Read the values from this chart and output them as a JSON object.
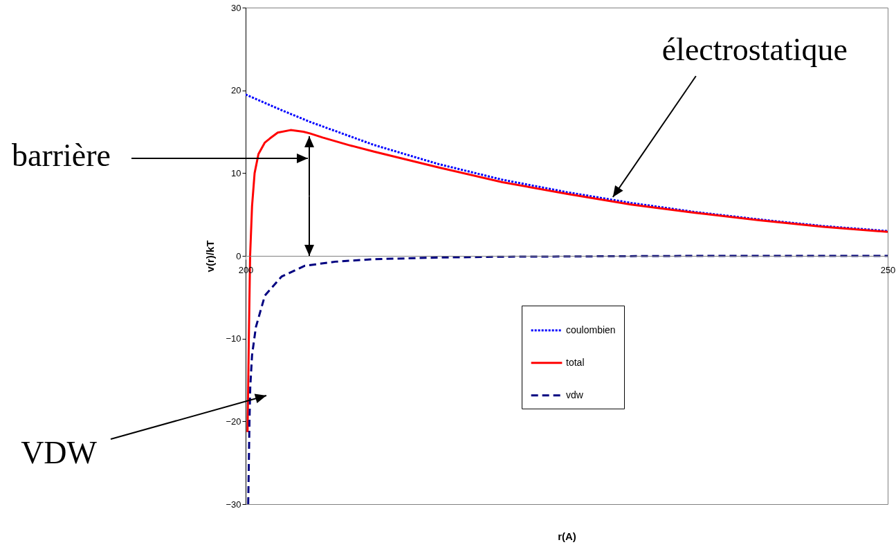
{
  "chart_data": {
    "type": "line",
    "xlabel": "r(A)",
    "ylabel": "v(r)/kT",
    "xlim": [
      200,
      250
    ],
    "ylim": [
      -30,
      30
    ],
    "xticks": [
      200,
      250
    ],
    "yticks": [
      -30,
      -20,
      -10,
      0,
      10,
      20,
      30
    ],
    "grid": false,
    "legend": "bottom",
    "marker": "none",
    "annotations": [
      {
        "text": "électrostatique",
        "x": 228.6,
        "y": 7.1
      },
      "barrière",
      "VDW"
    ],
    "series": [
      {
        "name": "coulombien",
        "color": "#0000ff",
        "line_style": "dotted",
        "x": [
          200,
          202.5,
          205,
          210,
          215,
          220,
          225,
          230,
          235,
          240,
          245,
          250
        ],
        "values": [
          19.5,
          17.8,
          16.2,
          13.4,
          11.1,
          9.2,
          7.7,
          6.4,
          5.3,
          4.4,
          3.6,
          3.0
        ]
      },
      {
        "name": "total",
        "color": "#ff0000",
        "line_style": "solid",
        "x": [
          200.15,
          200.25,
          200.35,
          200.5,
          200.7,
          201,
          201.5,
          201.9,
          202.5,
          203.5,
          204.5,
          205,
          206,
          208,
          210,
          215,
          220,
          225,
          230,
          235,
          240,
          245,
          250
        ],
        "values": [
          -21.3,
          -10,
          0,
          6,
          10,
          12.3,
          13.7,
          14.2,
          14.9,
          15.2,
          15,
          14.8,
          14.3,
          13.4,
          12.6,
          10.7,
          8.9,
          7.5,
          6.2,
          5.2,
          4.3,
          3.5,
          2.9
        ]
      },
      {
        "name": "vdw",
        "color": "#000080",
        "line_style": "dashed",
        "x": [
          200.2,
          200.3,
          200.36,
          200.5,
          200.8,
          201.5,
          202.8,
          204.6,
          207,
          210,
          215,
          220,
          235,
          250
        ],
        "values": [
          -30,
          -20,
          -15.9,
          -12,
          -8.6,
          -4.8,
          -2.5,
          -1.2,
          -0.7,
          -0.4,
          -0.2,
          -0.1,
          0,
          0
        ]
      }
    ]
  }
}
